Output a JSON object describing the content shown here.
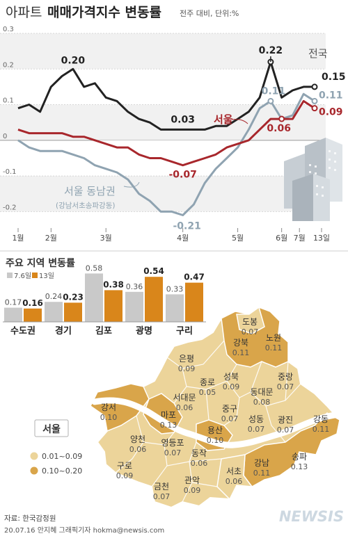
{
  "header": {
    "title_prefix": "아파트",
    "title_main": "매매가격지수 변동률",
    "title_note": "전주 대비, 단위:%"
  },
  "colors": {
    "national": "#222222",
    "seoul": "#a8272c",
    "southeast": "#8fa3b1",
    "bar_prev": "#c9c9c9",
    "bar_curr": "#d9861b",
    "map_low": "#ecd49a",
    "map_high": "#d9a54a",
    "river": "#ffffff"
  },
  "chart_data": [
    {
      "type": "line",
      "x_ticks": [
        "1월",
        "2월",
        "3월",
        "4월",
        "5월",
        "6월",
        "7월",
        "13일"
      ],
      "ylim": [
        -0.25,
        0.3
      ],
      "y_ticks": [
        "0.3",
        "0.2",
        "0.1",
        "0",
        "-0.1",
        "-0.2"
      ],
      "y_tick_values": [
        0.3,
        0.2,
        0.1,
        0,
        -0.1,
        -0.2
      ],
      "series": [
        {
          "name": "전국",
          "values": [
            0.09,
            0.1,
            0.08,
            0.15,
            0.18,
            0.2,
            0.15,
            0.16,
            0.12,
            0.11,
            0.08,
            0.06,
            0.05,
            0.03,
            0.03,
            0.03,
            0.03,
            0.03,
            0.04,
            0.04,
            0.06,
            0.08,
            0.12,
            0.22,
            0.12,
            0.14,
            0.15,
            0.15
          ],
          "labels": [
            {
              "index": 5,
              "text": "0.20"
            },
            {
              "index": 15,
              "text": "0.03"
            },
            {
              "index": 23,
              "text": "0.22"
            },
            {
              "index": 27,
              "text": "0.15"
            }
          ]
        },
        {
          "name": "서울",
          "values": [
            0.03,
            0.02,
            0.02,
            0.02,
            0.02,
            0.01,
            0.01,
            0.0,
            -0.01,
            -0.02,
            -0.02,
            -0.04,
            -0.05,
            -0.05,
            -0.06,
            -0.07,
            -0.06,
            -0.05,
            -0.04,
            -0.02,
            -0.01,
            0.0,
            0.03,
            0.06,
            0.06,
            0.06,
            0.11,
            0.09
          ],
          "labels": [
            {
              "index": 15,
              "text": "-0.07"
            },
            {
              "index": 24,
              "text": "0.06"
            },
            {
              "index": 27,
              "text": "0.09"
            }
          ]
        },
        {
          "name": "서울 동남권",
          "sub": "(강남서초송파강동)",
          "values": [
            0.0,
            -0.02,
            -0.03,
            -0.03,
            -0.03,
            -0.04,
            -0.05,
            -0.07,
            -0.08,
            -0.09,
            -0.11,
            -0.15,
            -0.17,
            -0.2,
            -0.2,
            -0.21,
            -0.18,
            -0.12,
            -0.08,
            -0.05,
            -0.02,
            0.03,
            0.09,
            0.11,
            0.06,
            0.07,
            0.13,
            0.11
          ],
          "labels": [
            {
              "index": 15,
              "text": "-0.21"
            },
            {
              "index": 23,
              "text": "0.11"
            },
            {
              "index": 27,
              "text": "0.11"
            }
          ]
        }
      ]
    },
    {
      "type": "bar",
      "title": "주요 지역 변동률",
      "categories": [
        "수도권",
        "경기",
        "김포",
        "광명",
        "구리"
      ],
      "series": [
        {
          "name": "7.6일",
          "values": [
            0.17,
            0.24,
            0.58,
            0.36,
            0.33
          ]
        },
        {
          "name": "13일",
          "values": [
            0.16,
            0.23,
            0.38,
            0.54,
            0.47
          ]
        }
      ]
    }
  ],
  "map": {
    "title": "서울",
    "legend": [
      {
        "label": "0.01~0.09",
        "level": "low"
      },
      {
        "label": "0.10~0.20",
        "level": "high"
      }
    ],
    "districts": [
      {
        "name": "도봉",
        "value": "0.07",
        "level": "low"
      },
      {
        "name": "노원",
        "value": "0.11",
        "level": "high"
      },
      {
        "name": "강북",
        "value": "0.11",
        "level": "high"
      },
      {
        "name": "은평",
        "value": "0.09",
        "level": "low"
      },
      {
        "name": "성북",
        "value": "0.09",
        "level": "low"
      },
      {
        "name": "중랑",
        "value": "0.07",
        "level": "low"
      },
      {
        "name": "종로",
        "value": "0.05",
        "level": "low"
      },
      {
        "name": "동대문",
        "value": "0.08",
        "level": "low"
      },
      {
        "name": "서대문",
        "value": "0.06",
        "level": "low"
      },
      {
        "name": "중구",
        "value": "0.07",
        "level": "low"
      },
      {
        "name": "강서",
        "value": "0.10",
        "level": "high"
      },
      {
        "name": "마포",
        "value": "0.13",
        "level": "high"
      },
      {
        "name": "성동",
        "value": "0.07",
        "level": "low"
      },
      {
        "name": "광진",
        "value": "0.07",
        "level": "low"
      },
      {
        "name": "강동",
        "value": "0.11",
        "level": "high"
      },
      {
        "name": "용산",
        "value": "0.10",
        "level": "high"
      },
      {
        "name": "양천",
        "value": "0.06",
        "level": "low"
      },
      {
        "name": "영등포",
        "value": "0.07",
        "level": "low"
      },
      {
        "name": "동작",
        "value": "0.06",
        "level": "low"
      },
      {
        "name": "구로",
        "value": "0.09",
        "level": "low"
      },
      {
        "name": "강남",
        "value": "0.11",
        "level": "high"
      },
      {
        "name": "송파",
        "value": "0.13",
        "level": "high"
      },
      {
        "name": "서초",
        "value": "0.06",
        "level": "low"
      },
      {
        "name": "관악",
        "value": "0.09",
        "level": "low"
      },
      {
        "name": "금천",
        "value": "0.07",
        "level": "low"
      }
    ]
  },
  "footer": {
    "source": "자료: 한국감정원",
    "credit": "20.07.16 안지혜 그래픽기자 hokma@newsis.com",
    "logo": "NEWSIS"
  }
}
